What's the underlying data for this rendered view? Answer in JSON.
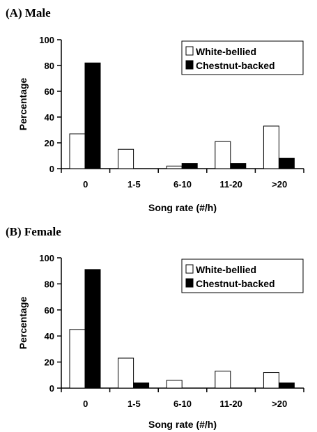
{
  "chart_data": [
    {
      "type": "bar",
      "title": "(A) Male",
      "xlabel": "Song rate (#/h)",
      "ylabel": "Percentage",
      "ylim": [
        0,
        100
      ],
      "yticks": [
        0,
        20,
        40,
        60,
        80,
        100
      ],
      "categories": [
        "0",
        "1-5",
        "6-10",
        "11-20",
        ">20"
      ],
      "legend_position": "top-right",
      "series": [
        {
          "name": "White-bellied",
          "color": "#ffffff",
          "values": [
            27,
            15,
            2,
            21,
            33
          ]
        },
        {
          "name": "Chestnut-backed",
          "color": "#000000",
          "values": [
            82,
            0,
            4,
            4,
            8
          ]
        }
      ]
    },
    {
      "type": "bar",
      "title": "(B) Female",
      "xlabel": "Song rate (#/h)",
      "ylabel": "Percentage",
      "ylim": [
        0,
        100
      ],
      "yticks": [
        0,
        20,
        40,
        60,
        80,
        100
      ],
      "categories": [
        "0",
        "1-5",
        "6-10",
        "11-20",
        ">20"
      ],
      "legend_position": "top-right",
      "series": [
        {
          "name": "White-bellied",
          "color": "#ffffff",
          "values": [
            45,
            23,
            6,
            13,
            12
          ]
        },
        {
          "name": "Chestnut-backed",
          "color": "#000000",
          "values": [
            91,
            4,
            0,
            0,
            4
          ]
        }
      ]
    }
  ]
}
